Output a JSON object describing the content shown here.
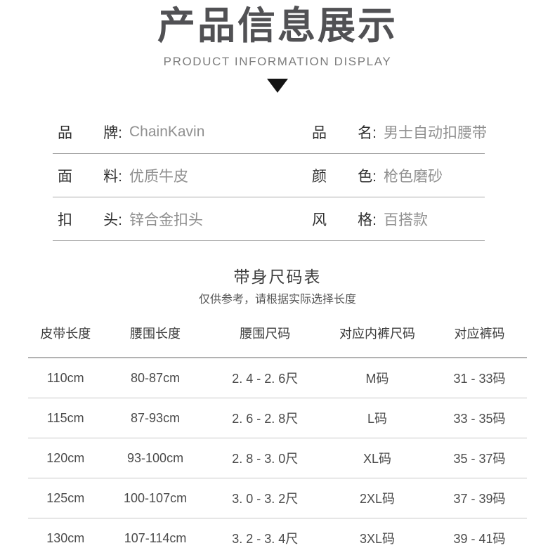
{
  "header": {
    "title": "产品信息展示",
    "subtitle": "PRODUCT INFORMATION DISPLAY"
  },
  "info": {
    "rows": [
      {
        "l1": "品",
        "l2": "牌:",
        "lv": "ChainKavin",
        "r1": "品",
        "r2": "名:",
        "rv": "男士自动扣腰带"
      },
      {
        "l1": "面",
        "l2": "料:",
        "lv": "优质牛皮",
        "r1": "颜",
        "r2": "色:",
        "rv": "枪色磨砂"
      },
      {
        "l1": "扣",
        "l2": "头:",
        "lv": "锌合金扣头",
        "r1": "风",
        "r2": "格:",
        "rv": "百搭款"
      }
    ]
  },
  "size_table": {
    "title": "带身尺码表",
    "note": "仅供参考，请根据实际选择长度",
    "headers": [
      "皮带长度",
      "腰围长度",
      "腰围尺码",
      "对应内裤尺码",
      "对应裤码"
    ],
    "rows": [
      [
        "110cm",
        "80-87cm",
        "2. 4 - 2. 6尺",
        "M码",
        "31 - 33码"
      ],
      [
        "115cm",
        "87-93cm",
        "2. 6 - 2. 8尺",
        "L码",
        "33 - 35码"
      ],
      [
        "120cm",
        "93-100cm",
        "2. 8 - 3. 0尺",
        "XL码",
        "35 - 37码"
      ],
      [
        "125cm",
        "100-107cm",
        "3. 0 - 3. 2尺",
        "2XL码",
        "37 - 39码"
      ],
      [
        "130cm",
        "107-114cm",
        "3. 2 - 3. 4尺",
        "3XL码",
        "39 - 41码"
      ]
    ]
  },
  "colors": {
    "title": "#515154",
    "subtitle": "#7d7d7d",
    "triangle": "#141414",
    "label": "#2f2f2f",
    "value": "#909090",
    "separator": "#aaaaaa",
    "table_text": "#4b4b4b"
  }
}
